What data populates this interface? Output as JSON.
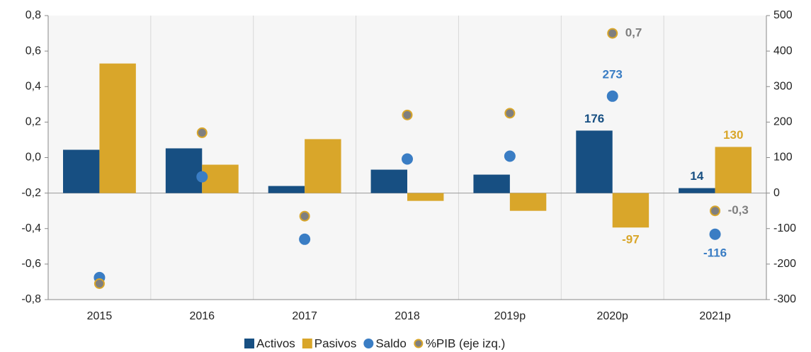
{
  "chart_data": {
    "type": "bar",
    "categories": [
      "2015",
      "2016",
      "2017",
      "2018",
      "2019p",
      "2020p",
      "2021p"
    ],
    "series": [
      {
        "name": "Activos",
        "color": "#174f82",
        "axis": "y2",
        "kind": "bar",
        "values": [
          122,
          126,
          20,
          66,
          52,
          176,
          14
        ],
        "value_labels": [
          null,
          null,
          null,
          null,
          null,
          "176",
          "14"
        ]
      },
      {
        "name": "Pasivos",
        "color": "#d9a62a",
        "axis": "y2",
        "kind": "bar",
        "values": [
          365,
          80,
          152,
          -22,
          -50,
          -97,
          130
        ],
        "value_labels": [
          null,
          null,
          null,
          null,
          null,
          "-97",
          "130"
        ]
      },
      {
        "name": "Saldo",
        "color": "#3a7dc4",
        "axis": "y2",
        "kind": "dot",
        "values": [
          -238,
          46,
          -130,
          96,
          104,
          273,
          -116
        ],
        "value_labels": [
          null,
          null,
          null,
          null,
          null,
          "273",
          "-116"
        ]
      },
      {
        "name": "%PIB (eje izq.)",
        "color": "#7f7f7f",
        "axis": "y",
        "kind": "ring",
        "values": [
          -0.71,
          0.14,
          -0.33,
          0.24,
          0.25,
          0.7,
          -0.3
        ],
        "value_labels": [
          null,
          null,
          null,
          null,
          null,
          "0,7",
          "-0,3"
        ]
      }
    ],
    "ylim": [
      -0.8,
      0.8
    ],
    "yticks": [
      {
        "value": -0.8,
        "label": "-0,8"
      },
      {
        "value": -0.6,
        "label": "-0,6"
      },
      {
        "value": -0.4,
        "label": "-0,4"
      },
      {
        "value": -0.2,
        "label": "-0,2"
      },
      {
        "value": 0,
        "label": "0,0"
      },
      {
        "value": 0.2,
        "label": "0,2"
      },
      {
        "value": 0.4,
        "label": "0,4"
      },
      {
        "value": 0.6,
        "label": "0,6"
      },
      {
        "value": 0.8,
        "label": "0,8"
      }
    ],
    "y2lim": [
      -300,
      500
    ],
    "y2ticks": [
      -300,
      -200,
      -100,
      0,
      100,
      200,
      300,
      400,
      500
    ],
    "legend": "bottom"
  }
}
